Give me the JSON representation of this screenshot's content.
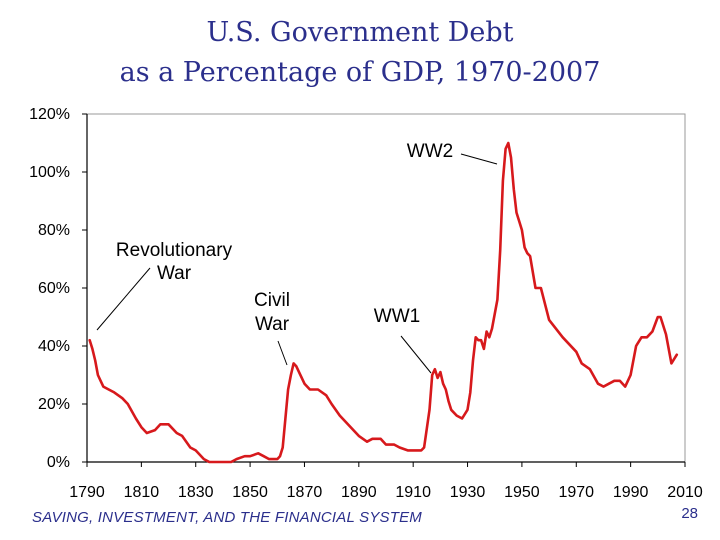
{
  "slide": {
    "title_line1": "U.S. Government Debt",
    "title_line2": "as a Percentage of GDP, 1970-2007",
    "footer": "SAVING, INVESTMENT, AND THE FINANCIAL SYSTEM",
    "page_number": "28"
  },
  "colors": {
    "title": "#2b2f8c",
    "line": "#d7191c",
    "axis": "#000000"
  },
  "chart_data": {
    "type": "line",
    "title": "U.S. Government Debt as a Percentage of GDP, 1970-2007",
    "xlabel": "",
    "ylabel": "",
    "xlim": [
      1790,
      2010
    ],
    "ylim": [
      0,
      120
    ],
    "x_ticks": [
      "1790",
      "1810",
      "1830",
      "1850",
      "1870",
      "1890",
      "1910",
      "1930",
      "1950",
      "1970",
      "1990",
      "2010"
    ],
    "y_ticks": [
      "0%",
      "20%",
      "40%",
      "60%",
      "80%",
      "100%",
      "120%"
    ],
    "grid": false,
    "legend": "none",
    "series": [
      {
        "x": [
          1791,
          1792,
          1793,
          1794,
          1795,
          1796,
          1798,
          1800,
          1803,
          1805,
          1808,
          1810,
          1812,
          1815,
          1817,
          1820,
          1823,
          1825,
          1828,
          1830,
          1833,
          1835,
          1837,
          1840,
          1843,
          1845,
          1848,
          1850,
          1853,
          1855,
          1857,
          1858,
          1860,
          1861,
          1862,
          1863,
          1864,
          1865,
          1866,
          1867,
          1868,
          1870,
          1872,
          1875,
          1878,
          1880,
          1883,
          1885,
          1888,
          1890,
          1893,
          1895,
          1898,
          1900,
          1903,
          1905,
          1908,
          1910,
          1913,
          1914,
          1916,
          1917,
          1918,
          1919,
          1920,
          1921,
          1922,
          1923,
          1924,
          1926,
          1928,
          1930,
          1931,
          1932,
          1933,
          1934,
          1935,
          1936,
          1937,
          1938,
          1939,
          1940,
          1941,
          1942,
          1943,
          1944,
          1945,
          1946,
          1947,
          1948,
          1949,
          1950,
          1951,
          1952,
          1953,
          1955,
          1957,
          1960,
          1965,
          1970,
          1972,
          1975,
          1978,
          1980,
          1982,
          1984,
          1986,
          1988,
          1990,
          1992,
          1994,
          1996,
          1998,
          2000,
          2001,
          2003,
          2005,
          2007
        ],
        "values": [
          42,
          39,
          35,
          30,
          28,
          26,
          25,
          24,
          22,
          20,
          15,
          12,
          10,
          11,
          13,
          13,
          10,
          9,
          5,
          4,
          1,
          0,
          0,
          0,
          0,
          1,
          2,
          2,
          3,
          2,
          1,
          1,
          1,
          2,
          5,
          15,
          25,
          30,
          34,
          33,
          31,
          27,
          25,
          25,
          23,
          20,
          16,
          14,
          11,
          9,
          7,
          8,
          8,
          6,
          6,
          5,
          4,
          4,
          4,
          5,
          18,
          30,
          32,
          29,
          31,
          27,
          25,
          21,
          18,
          16,
          15,
          18,
          24,
          35,
          43,
          42,
          42,
          39,
          45,
          43,
          46,
          51,
          56,
          73,
          97,
          108,
          110,
          105,
          94,
          86,
          83,
          80,
          74,
          72,
          71,
          60,
          60,
          49,
          43,
          38,
          34,
          32,
          27,
          26,
          27,
          28,
          28,
          26,
          30,
          40,
          43,
          43,
          45,
          50,
          50,
          44,
          34,
          37
        ]
      }
    ],
    "annotations": [
      {
        "text": "WW2",
        "x": 1946,
        "y": 108
      },
      {
        "text": "Revolutionary War",
        "x": 1791,
        "y": 45
      },
      {
        "text": "Civil War",
        "x": 1865,
        "y": 34
      },
      {
        "text": "WW1",
        "x": 1919,
        "y": 30
      }
    ]
  }
}
